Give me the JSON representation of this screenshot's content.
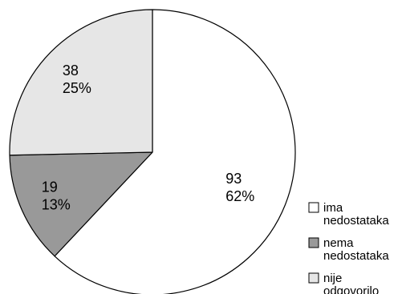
{
  "chart_data": {
    "type": "pie",
    "title": "",
    "legend_position": "bottom-right",
    "slices": [
      {
        "name": "ima nedostataka",
        "legend_lines": [
          "ima",
          "nedostataka"
        ],
        "value": 93,
        "percent_label": "62%",
        "color": "#ffffff"
      },
      {
        "name": "nema nedostataka",
        "legend_lines": [
          "nema",
          "nedostataka"
        ],
        "value": 19,
        "percent_label": "13%",
        "color": "#999999"
      },
      {
        "name": "nije odgovorilo",
        "legend_lines": [
          "nije",
          "odgovorilo"
        ],
        "value": 38,
        "percent_label": "25%",
        "color": "#e6e6e6"
      }
    ]
  }
}
